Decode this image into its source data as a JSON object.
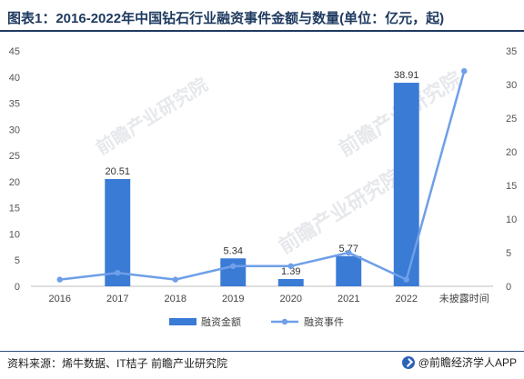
{
  "title": "图表1：2016-2022年中国钻石行业融资事件金额与数量(单位：亿元，起)",
  "source": "资料来源：烯牛数据、IT桔子 前瞻产业研究院",
  "brand": "@前瞻经济学人APP",
  "watermark": "前瞻产业研究院",
  "chart_data": {
    "type": "bar",
    "categories": [
      "2016",
      "2017",
      "2018",
      "2019",
      "2020",
      "2021",
      "2022",
      "未披露时间"
    ],
    "series": [
      {
        "name": "融资金额",
        "type": "bar",
        "axis": "left",
        "color": "#3a7bd5",
        "values": [
          null,
          20.51,
          null,
          5.34,
          1.39,
          5.77,
          38.91,
          null
        ],
        "labels": [
          "",
          "20.51",
          "",
          "5.34",
          "1.39",
          "5.77",
          "38.91",
          ""
        ]
      },
      {
        "name": "融资事件",
        "type": "line",
        "axis": "right",
        "color": "#6e9fe8",
        "values": [
          1,
          2,
          1,
          3,
          3,
          5,
          1,
          32
        ]
      }
    ],
    "y_left": {
      "min": 0,
      "max": 45,
      "ticks": [
        0,
        5,
        10,
        15,
        20,
        25,
        30,
        35,
        40,
        45
      ]
    },
    "y_right": {
      "min": 0,
      "max": 35,
      "ticks": [
        0,
        5,
        10,
        15,
        20,
        25,
        30,
        35
      ]
    },
    "grid": false,
    "legend": "bottom"
  }
}
